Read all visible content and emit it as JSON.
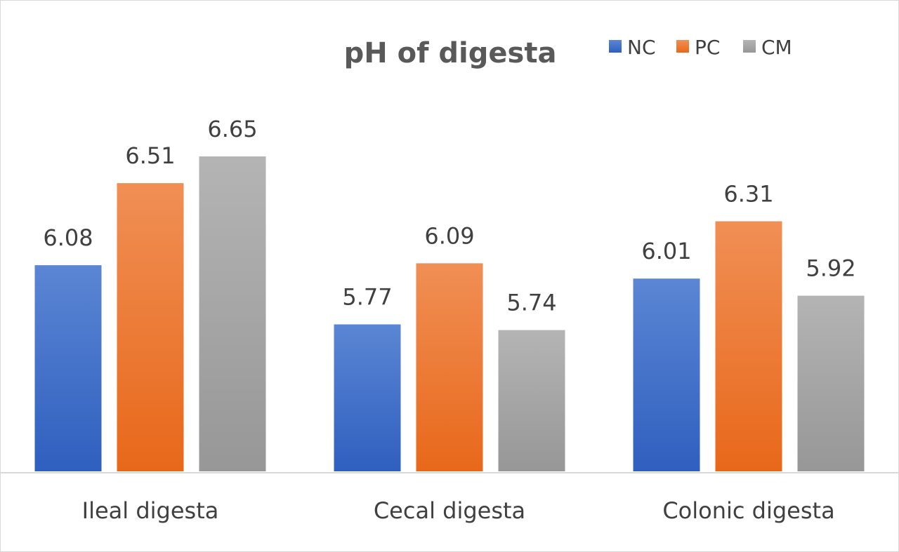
{
  "chart_data": {
    "type": "bar",
    "title": "pH of digesta",
    "xlabel": "",
    "ylabel": "",
    "categories": [
      "Ileal digesta",
      "Cecal digesta",
      "Colonic digesta"
    ],
    "series": [
      {
        "name": "NC",
        "values": [
          6.08,
          5.77,
          6.01
        ],
        "color": "#4472c4",
        "color_light": "#5b86d4",
        "color_dark": "#2f5fbf"
      },
      {
        "name": "PC",
        "values": [
          6.51,
          6.09,
          6.31
        ],
        "color": "#ed7d31",
        "color_light": "#f08f55",
        "color_dark": "#e8681a"
      },
      {
        "name": "CM",
        "values": [
          6.65,
          5.74,
          5.92
        ],
        "color": "#a5a5a5",
        "color_light": "#b4b4b4",
        "color_dark": "#979797"
      }
    ],
    "ylim": [
      5.0,
      6.9
    ],
    "grid": false,
    "legend": "top-right",
    "data_labels": true
  }
}
